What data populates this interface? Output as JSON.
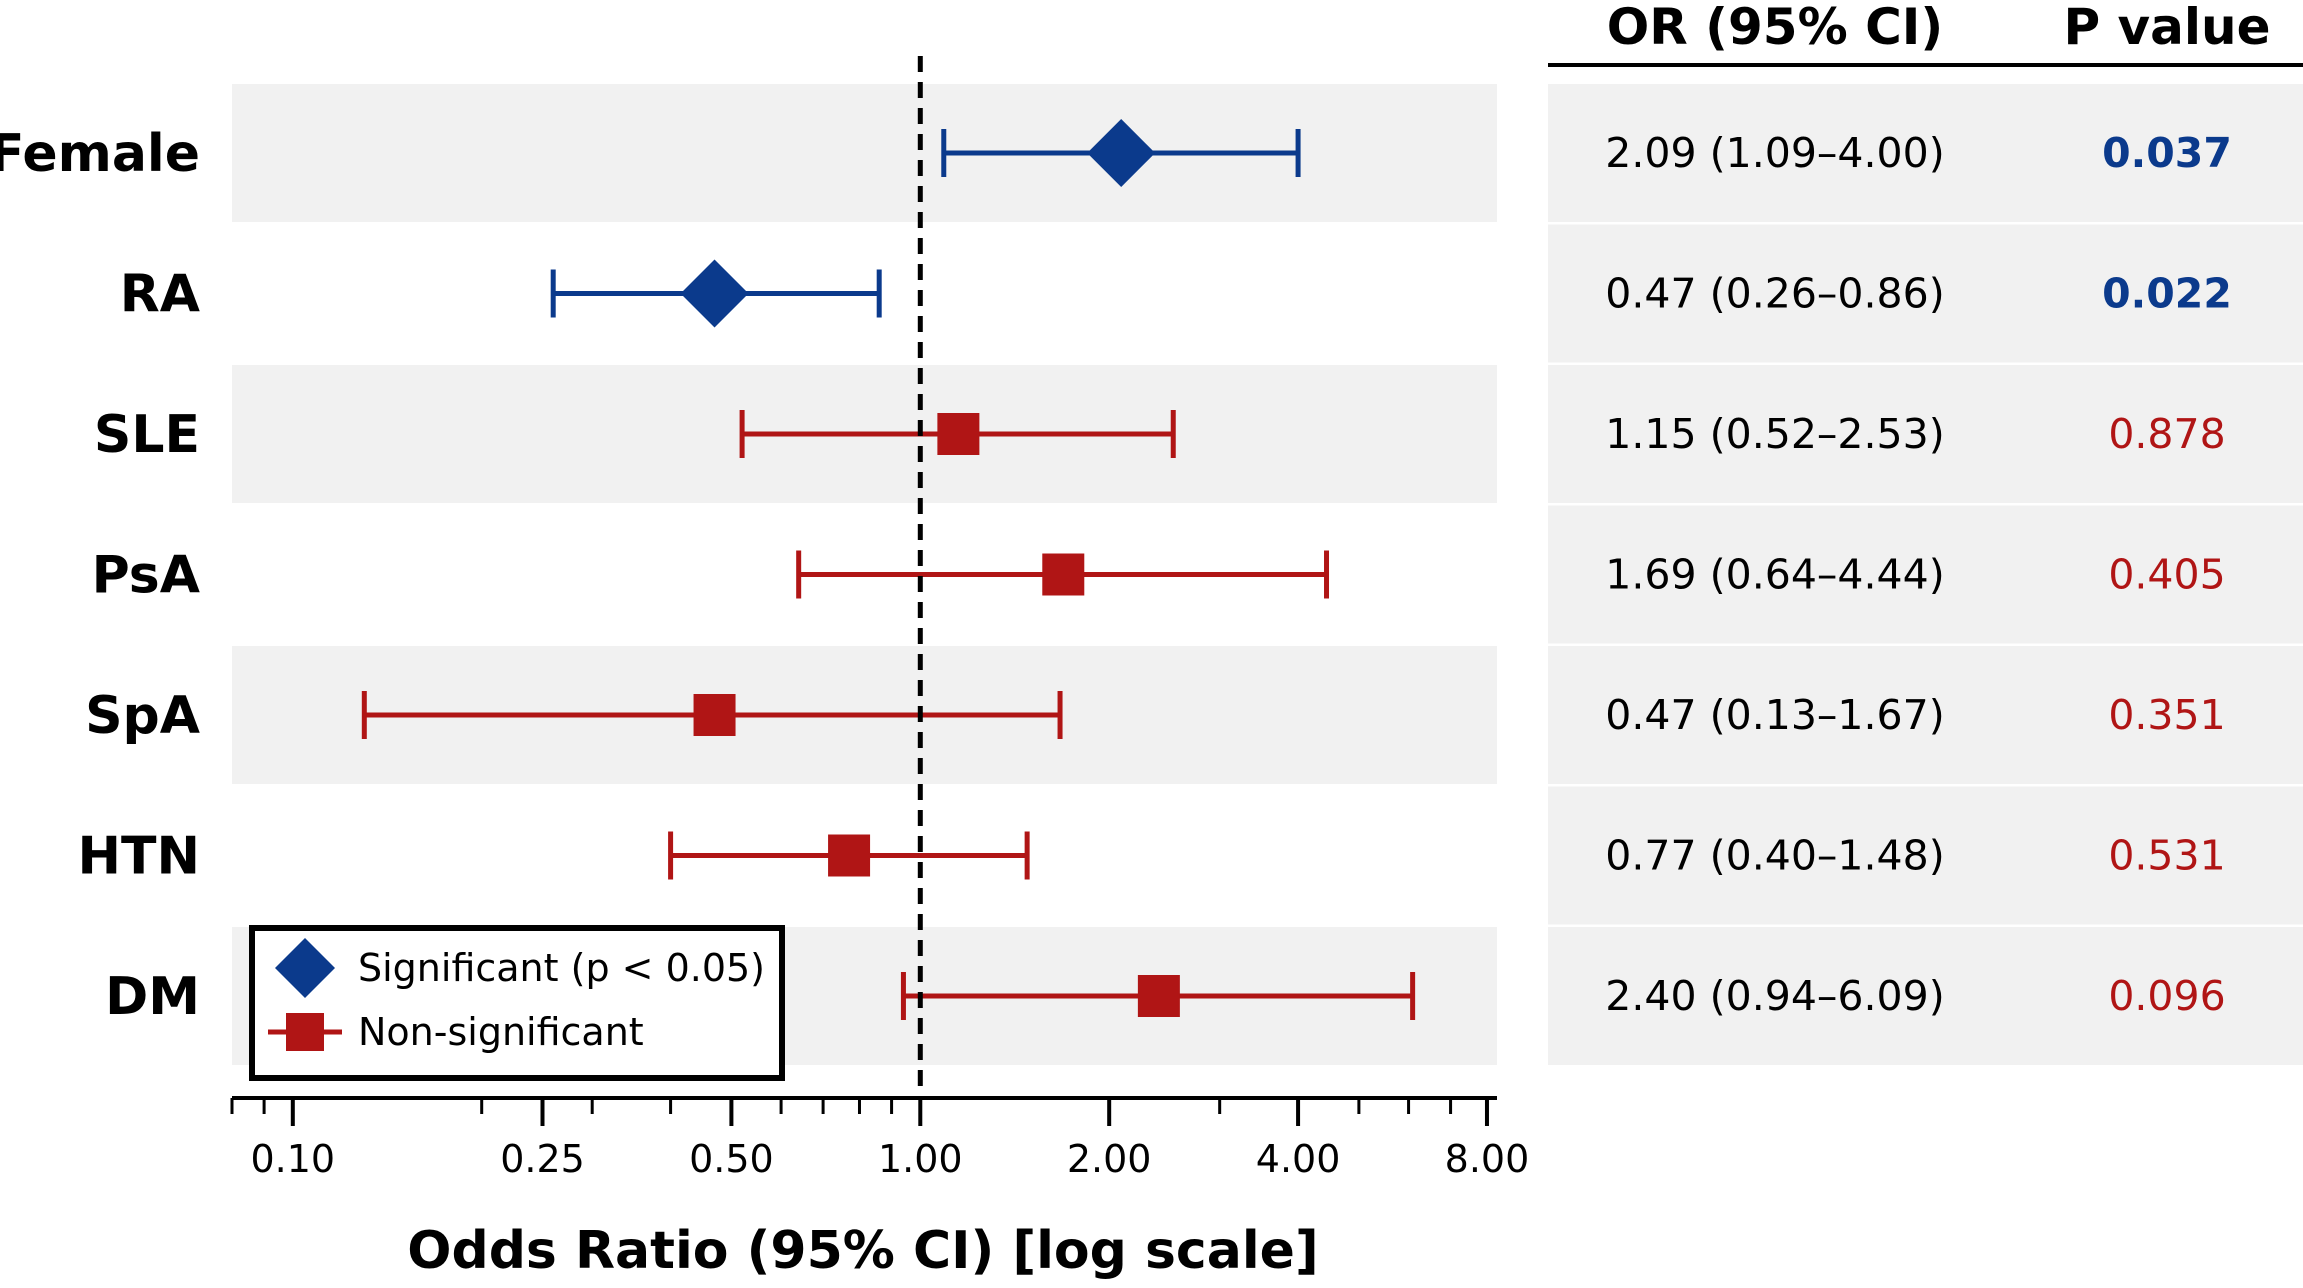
{
  "chart_data": {
    "type": "forest",
    "xlabel": "Odds Ratio (95% CI)  [log scale]",
    "x_scale": "log",
    "xlim": [
      0.08,
      8.3
    ],
    "reference_line": 1.0,
    "x_ticks": [
      0.1,
      0.25,
      0.5,
      1.0,
      2.0,
      4.0,
      8.0
    ],
    "x_tick_labels": [
      "0.10",
      "0.25",
      "0.50",
      "1.00",
      "2.00",
      "4.00",
      "8.00"
    ],
    "columns": {
      "or_header": "OR (95% CI)",
      "p_header": "P value"
    },
    "rows": [
      {
        "label": "Female",
        "or": 2.09,
        "lower": 1.09,
        "upper": 4.0,
        "or_text": "2.09 (1.09–4.00)",
        "p_text": "0.037",
        "significant": true
      },
      {
        "label": "RA",
        "or": 0.47,
        "lower": 0.26,
        "upper": 0.86,
        "or_text": "0.47 (0.26–0.86)",
        "p_text": "0.022",
        "significant": true
      },
      {
        "label": "SLE",
        "or": 1.15,
        "lower": 0.52,
        "upper": 2.53,
        "or_text": "1.15 (0.52–2.53)",
        "p_text": "0.878",
        "significant": false
      },
      {
        "label": "PsA",
        "or": 1.69,
        "lower": 0.64,
        "upper": 4.44,
        "or_text": "1.69 (0.64–4.44)",
        "p_text": "0.405",
        "significant": false
      },
      {
        "label": "SpA",
        "or": 0.47,
        "lower": 0.13,
        "upper": 1.67,
        "or_text": "0.47 (0.13–1.67)",
        "p_text": "0.351",
        "significant": false
      },
      {
        "label": "HTN",
        "or": 0.77,
        "lower": 0.4,
        "upper": 1.48,
        "or_text": "0.77 (0.40–1.48)",
        "p_text": "0.531",
        "significant": false
      },
      {
        "label": "DM",
        "or": 2.4,
        "lower": 0.94,
        "upper": 6.09,
        "or_text": "2.40 (0.94–6.09)",
        "p_text": "0.096",
        "significant": false
      }
    ],
    "legend": {
      "placement": "bottom-left",
      "items": [
        {
          "label": "Significant (p < 0.05)",
          "marker": "diamond"
        },
        {
          "label": "Non-significant",
          "marker": "square"
        }
      ]
    },
    "colors": {
      "significant": "#0b3a8c",
      "non_significant": "#b01515",
      "band": "#f1f1f1"
    }
  }
}
